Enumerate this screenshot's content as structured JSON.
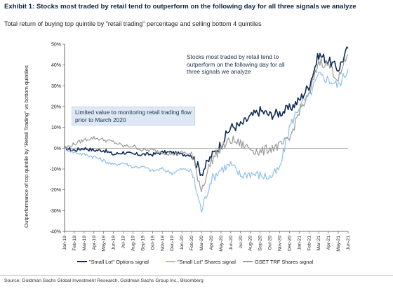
{
  "title": "Exhibit 1: Stocks most traded by retail tend to outperform on the following day for all three signals we analyze",
  "subtitle": "Total return of buying top quintile by \"retail trading\" percentage and selling bottom 4 quintiles",
  "source": "Source: Goldman Sachs Global Investment Research, Goldman Sachs Group Inc., Bloomberg",
  "annotations": {
    "right": "Stocks most traded by retail tend to outperform on the following day for all three signals we analyze",
    "left": "Limited value to monitoring retail trading flow prior to March 2020"
  },
  "chart_data": {
    "type": "line",
    "title": "",
    "xlabel": "",
    "ylabel": "Outperformance of top quintile by \"Retail Trading\" vs bottom quintiles",
    "ylim": [
      -40,
      50
    ],
    "yticks": [
      "-40%",
      "-30%",
      "-20%",
      "-10%",
      "0%",
      "10%",
      "20%",
      "30%",
      "40%",
      "50%"
    ],
    "x": [
      "Jan-19",
      "Feb-19",
      "Mar-19",
      "Apr-19",
      "May-19",
      "Jun-19",
      "Jul-19",
      "Aug-19",
      "Sep-19",
      "Oct-19",
      "Nov-19",
      "Dec-19",
      "Jan-20",
      "Feb-20",
      "Mar-20",
      "Apr-20",
      "May-20",
      "Jun-20",
      "Jul-20",
      "Aug-20",
      "Sep-20",
      "Oct-20",
      "Nov-20",
      "Dec-20",
      "Jan-21",
      "Feb-21",
      "Mar-21",
      "Apr-21",
      "May-21",
      "Jun-21"
    ],
    "grid": false,
    "legend_position": "bottom",
    "series": [
      {
        "name": "\"Small Lot\" Options signal",
        "color": "#0d2a55",
        "values": [
          0,
          -1,
          0,
          -1,
          -1,
          -3,
          -2,
          -3,
          -3,
          -3,
          -2,
          -2,
          -3,
          -3,
          -12,
          -4,
          2,
          10,
          11,
          15,
          18,
          16,
          17,
          19,
          23,
          30,
          45,
          42,
          38,
          48
        ]
      },
      {
        "name": "\"Small Lot\" Shares signal",
        "color": "#8fc0ea",
        "values": [
          0,
          -2,
          -3,
          -4,
          -6,
          -8,
          -7,
          -9,
          -9,
          -11,
          -10,
          -12,
          -10,
          -11,
          -30,
          -15,
          -10,
          -8,
          -13,
          -12,
          -13,
          -14,
          -10,
          10,
          20,
          25,
          35,
          33,
          30,
          38
        ]
      },
      {
        "name": "GSET TRF Shares signal",
        "color": "#9a9a9a",
        "values": [
          0,
          2,
          4,
          5,
          4,
          3,
          1,
          1,
          -1,
          -1,
          -2,
          -3,
          -2,
          -3,
          -20,
          -6,
          0,
          4,
          2,
          0,
          -2,
          0,
          1,
          4,
          18,
          25,
          42,
          40,
          33,
          45
        ]
      }
    ]
  }
}
